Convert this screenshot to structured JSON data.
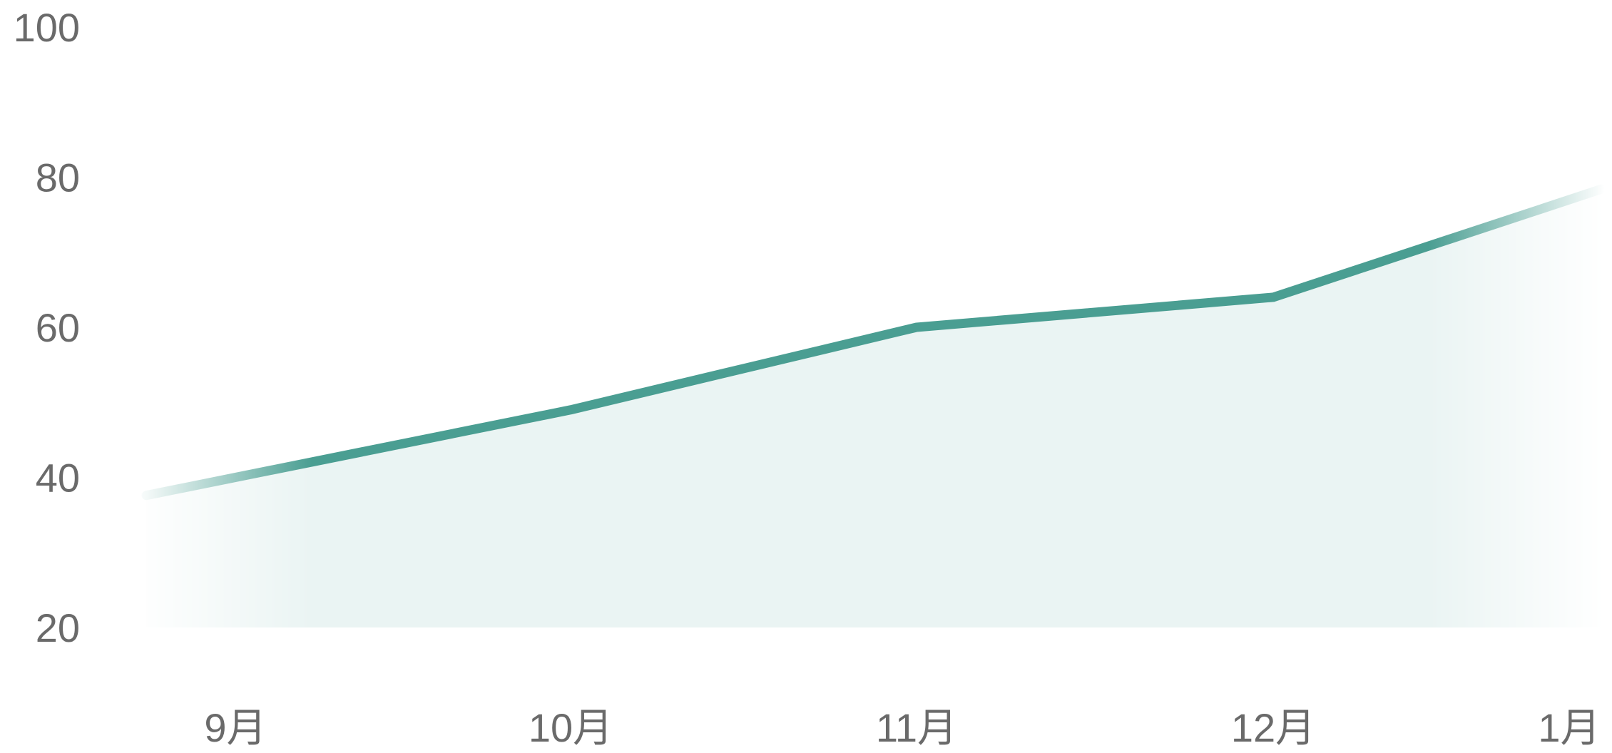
{
  "chart_data": {
    "type": "area",
    "title": "",
    "xlabel": "",
    "ylabel": "",
    "categories": [
      "9月",
      "10月",
      "11月",
      "12月",
      "1月"
    ],
    "series": [
      {
        "values": [
          40,
          49,
          60,
          64,
          77
        ]
      }
    ],
    "yticks": [
      "20",
      "40",
      "60",
      "80",
      "100"
    ],
    "ylim": [
      20,
      100
    ],
    "grid": true,
    "legend": "none",
    "colors": {
      "line": "#4a9e92",
      "area": "#eaf4f3",
      "grid": "#c8cccc",
      "tick_text": "#6a6a6a"
    }
  }
}
